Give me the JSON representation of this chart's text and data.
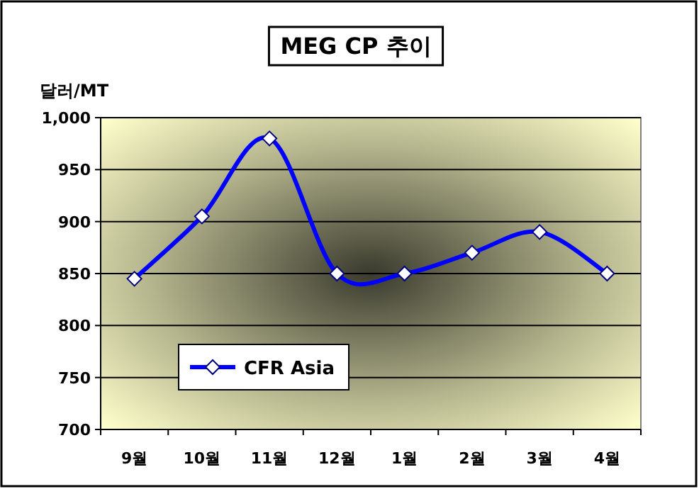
{
  "chart_data": {
    "type": "line",
    "title": "MEG CP 추이",
    "ylabel": "달러/MT",
    "categories": [
      "9월",
      "10월",
      "11월",
      "12월",
      "1월",
      "2월",
      "3월",
      "4월"
    ],
    "series": [
      {
        "name": "CFR Asia",
        "color": "#0000ff",
        "values": [
          845,
          905,
          980,
          850,
          850,
          870,
          890,
          850
        ]
      }
    ],
    "ylim": [
      700,
      1000
    ],
    "yticks": [
      700,
      750,
      800,
      850,
      900,
      950,
      {
        "value": 1000,
        "label": "1,000"
      }
    ],
    "grid": "y",
    "legend": "bottom left",
    "marker": "diamond",
    "line_style": "solid"
  }
}
